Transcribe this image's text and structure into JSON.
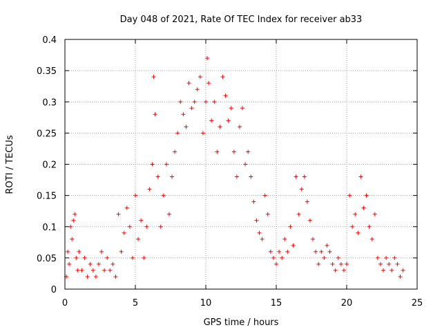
{
  "chart_data": {
    "type": "scatter",
    "title": "Day 048 of 2021, Rate Of TEC Index for receiver ab33",
    "xlabel": "GPS time / hours",
    "ylabel": "ROTI / TECUs",
    "xlim": [
      0,
      25
    ],
    "ylim": [
      0,
      0.4
    ],
    "xticks": [
      "0",
      "5",
      "10",
      "15",
      "20",
      "25"
    ],
    "yticks": [
      "0",
      "0.05",
      "0.1",
      "0.15",
      "0.2",
      "0.25",
      "0.3",
      "0.35",
      "0.4"
    ],
    "grid": true,
    "marker": "+",
    "color": "#ff0000",
    "series": [
      {
        "name": "",
        "points": [
          [
            0.1,
            0.02
          ],
          [
            0.2,
            0.06
          ],
          [
            0.3,
            0.04
          ],
          [
            0.4,
            0.1
          ],
          [
            0.5,
            0.08
          ],
          [
            0.6,
            0.11
          ],
          [
            0.7,
            0.12
          ],
          [
            0.8,
            0.05
          ],
          [
            0.9,
            0.03
          ],
          [
            1.0,
            0.06
          ],
          [
            1.2,
            0.03
          ],
          [
            1.4,
            0.05
          ],
          [
            1.6,
            0.02
          ],
          [
            1.8,
            0.04
          ],
          [
            2.0,
            0.03
          ],
          [
            2.2,
            0.02
          ],
          [
            2.4,
            0.04
          ],
          [
            2.6,
            0.06
          ],
          [
            2.8,
            0.03
          ],
          [
            3.0,
            0.05
          ],
          [
            3.2,
            0.03
          ],
          [
            3.4,
            0.04
          ],
          [
            3.6,
            0.02
          ],
          [
            3.8,
            0.12
          ],
          [
            4.0,
            0.06
          ],
          [
            4.2,
            0.09
          ],
          [
            4.4,
            0.13
          ],
          [
            4.6,
            0.1
          ],
          [
            4.8,
            0.05
          ],
          [
            5.0,
            0.15
          ],
          [
            5.2,
            0.08
          ],
          [
            5.4,
            0.11
          ],
          [
            5.6,
            0.05
          ],
          [
            5.8,
            0.1
          ],
          [
            6.0,
            0.16
          ],
          [
            6.2,
            0.2
          ],
          [
            6.3,
            0.34
          ],
          [
            6.4,
            0.28
          ],
          [
            6.6,
            0.18
          ],
          [
            6.8,
            0.1
          ],
          [
            7.0,
            0.15
          ],
          [
            7.2,
            0.2
          ],
          [
            7.4,
            0.12
          ],
          [
            7.6,
            0.18
          ],
          [
            7.8,
            0.22
          ],
          [
            8.0,
            0.25
          ],
          [
            8.2,
            0.3
          ],
          [
            8.4,
            0.28
          ],
          [
            8.6,
            0.26
          ],
          [
            8.8,
            0.33
          ],
          [
            9.0,
            0.29
          ],
          [
            9.2,
            0.3
          ],
          [
            9.4,
            0.32
          ],
          [
            9.6,
            0.34
          ],
          [
            9.8,
            0.25
          ],
          [
            10.0,
            0.3
          ],
          [
            10.1,
            0.37
          ],
          [
            10.2,
            0.33
          ],
          [
            10.4,
            0.27
          ],
          [
            10.6,
            0.3
          ],
          [
            10.8,
            0.22
          ],
          [
            11.0,
            0.26
          ],
          [
            11.2,
            0.34
          ],
          [
            11.4,
            0.31
          ],
          [
            11.6,
            0.27
          ],
          [
            11.8,
            0.29
          ],
          [
            12.0,
            0.22
          ],
          [
            12.2,
            0.18
          ],
          [
            12.4,
            0.26
          ],
          [
            12.6,
            0.29
          ],
          [
            12.8,
            0.2
          ],
          [
            13.0,
            0.22
          ],
          [
            13.2,
            0.18
          ],
          [
            13.4,
            0.14
          ],
          [
            13.6,
            0.11
          ],
          [
            13.8,
            0.09
          ],
          [
            14.0,
            0.08
          ],
          [
            14.2,
            0.15
          ],
          [
            14.4,
            0.12
          ],
          [
            14.6,
            0.06
          ],
          [
            14.8,
            0.05
          ],
          [
            15.0,
            0.04
          ],
          [
            15.2,
            0.06
          ],
          [
            15.4,
            0.05
          ],
          [
            15.6,
            0.08
          ],
          [
            15.8,
            0.06
          ],
          [
            16.0,
            0.1
          ],
          [
            16.2,
            0.07
          ],
          [
            16.4,
            0.18
          ],
          [
            16.6,
            0.12
          ],
          [
            16.8,
            0.16
          ],
          [
            17.0,
            0.18
          ],
          [
            17.2,
            0.14
          ],
          [
            17.4,
            0.11
          ],
          [
            17.6,
            0.08
          ],
          [
            17.8,
            0.06
          ],
          [
            18.0,
            0.04
          ],
          [
            18.2,
            0.06
          ],
          [
            18.4,
            0.05
          ],
          [
            18.6,
            0.07
          ],
          [
            18.8,
            0.06
          ],
          [
            19.0,
            0.04
          ],
          [
            19.2,
            0.03
          ],
          [
            19.4,
            0.05
          ],
          [
            19.6,
            0.04
          ],
          [
            19.8,
            0.03
          ],
          [
            20.0,
            0.04
          ],
          [
            20.2,
            0.15
          ],
          [
            20.4,
            0.1
          ],
          [
            20.6,
            0.12
          ],
          [
            20.8,
            0.09
          ],
          [
            21.0,
            0.18
          ],
          [
            21.2,
            0.13
          ],
          [
            21.4,
            0.15
          ],
          [
            21.6,
            0.1
          ],
          [
            21.8,
            0.08
          ],
          [
            22.0,
            0.12
          ],
          [
            22.2,
            0.05
          ],
          [
            22.4,
            0.04
          ],
          [
            22.6,
            0.03
          ],
          [
            22.8,
            0.05
          ],
          [
            23.0,
            0.04
          ],
          [
            23.2,
            0.03
          ],
          [
            23.4,
            0.05
          ],
          [
            23.6,
            0.04
          ],
          [
            23.8,
            0.02
          ],
          [
            24.0,
            0.03
          ]
        ]
      }
    ]
  }
}
